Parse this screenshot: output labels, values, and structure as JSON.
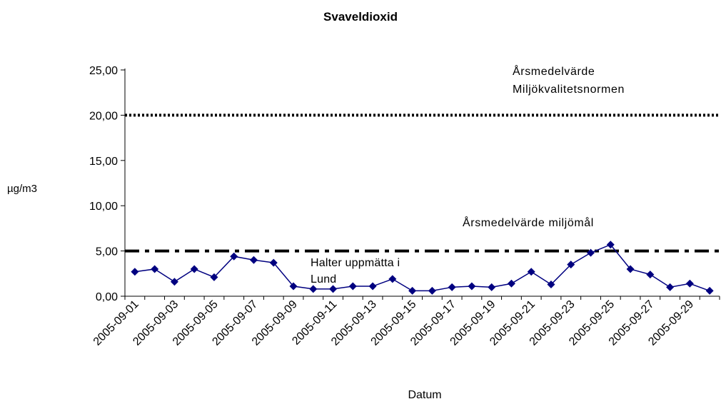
{
  "chart_data": {
    "type": "line",
    "title": "Svaveldioxid",
    "xlabel": "Datum",
    "ylabel": "µg/m3",
    "ylim": [
      0,
      25
    ],
    "yticks": [
      "0,00",
      "5,00",
      "10,00",
      "15,00",
      "20,00",
      "25,00"
    ],
    "xtick_labels": [
      "2005-09-01",
      "2005-09-03",
      "2005-09-05",
      "2005-09-07",
      "2005-09-09",
      "2005-09-11",
      "2005-09-13",
      "2005-09-15",
      "2005-09-17",
      "2005-09-19",
      "2005-09-21",
      "2005-09-23",
      "2005-09-25",
      "2005-09-27",
      "2005-09-29"
    ],
    "x": [
      "2005-09-01",
      "2005-09-02",
      "2005-09-03",
      "2005-09-04",
      "2005-09-05",
      "2005-09-06",
      "2005-09-07",
      "2005-09-08",
      "2005-09-09",
      "2005-09-10",
      "2005-09-11",
      "2005-09-12",
      "2005-09-13",
      "2005-09-14",
      "2005-09-15",
      "2005-09-16",
      "2005-09-17",
      "2005-09-18",
      "2005-09-19",
      "2005-09-20",
      "2005-09-21",
      "2005-09-22",
      "2005-09-23",
      "2005-09-24",
      "2005-09-25",
      "2005-09-26",
      "2005-09-27",
      "2005-09-28",
      "2005-09-29",
      "2005-09-30"
    ],
    "series": [
      {
        "values": [
          2.7,
          3.0,
          1.6,
          3.0,
          2.1,
          4.4,
          4.0,
          3.7,
          1.1,
          0.8,
          0.8,
          1.1,
          1.1,
          1.9,
          0.6,
          0.6,
          1.0,
          1.1,
          1.0,
          1.4,
          2.7,
          1.3,
          3.5,
          4.8,
          5.7,
          3.0,
          2.4,
          1.0,
          1.4,
          0.6
        ],
        "color": "#000080",
        "marker": "diamond"
      }
    ],
    "reference_lines": [
      {
        "value": 20.0,
        "style": "dotted",
        "label": "Årsmedelvärde Miljökvalitetsnormen",
        "color": "#000000"
      },
      {
        "value": 5.0,
        "style": "dash-dot",
        "label": "Årsmedelvärde miljömål",
        "color": "#000000"
      }
    ],
    "annotations": [
      "Halter uppmätta i Lund"
    ],
    "grid": false,
    "legend": "none"
  },
  "labels": {
    "ref_high_line1": "Årsmedelvärde",
    "ref_high_line2": "Miljökvalitetsnormen",
    "ref_low": "Årsmedelvärde miljömål",
    "measured_line1": "Halter uppmätta i",
    "measured_line2": "Lund"
  }
}
